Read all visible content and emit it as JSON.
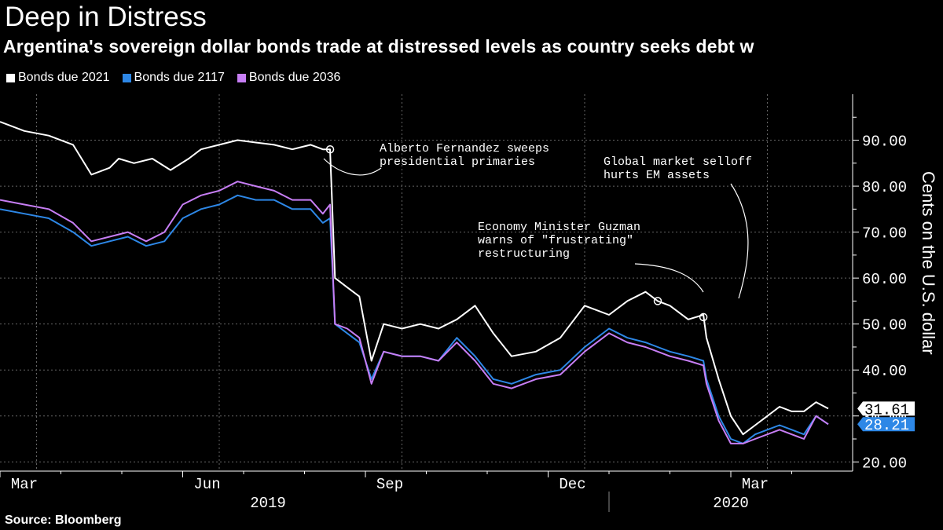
{
  "title": "Deep in Distress",
  "subtitle": "Argentina's sovereign dollar bonds trade at distressed levels as country seeks debt w",
  "source": "Source: Bloomberg",
  "chart_data": {
    "type": "line",
    "ylabel": "Cents on the U.S. dollar",
    "ylim": [
      18,
      100
    ],
    "yticks": [
      "20.00",
      "30.00",
      "40.00",
      "50.00",
      "60.00",
      "70.00",
      "80.00",
      "90.00"
    ],
    "ytick_values": [
      20,
      30,
      40,
      50,
      60,
      70,
      80,
      90
    ],
    "x_labels": [
      "Mar",
      "Jun",
      "Sep",
      "Dec",
      "Mar"
    ],
    "x_label_positions": [
      2.4,
      5.4,
      8.4,
      11.4,
      14.4
    ],
    "year_labels": [
      "2019",
      "2020"
    ],
    "year_label_positions": [
      6.4,
      14.0
    ],
    "x_range": [
      2.0,
      16.0
    ],
    "grid": true,
    "legend_position": "top-left",
    "series": [
      {
        "name": "Bonds due 2021",
        "color": "#ffffff",
        "x": [
          2.0,
          2.4,
          2.8,
          3.2,
          3.5,
          3.8,
          3.95,
          4.2,
          4.5,
          4.8,
          5.1,
          5.3,
          5.6,
          5.9,
          6.2,
          6.5,
          6.8,
          7.1,
          7.3,
          7.42,
          7.5,
          7.7,
          7.9,
          8.1,
          8.3,
          8.6,
          8.9,
          9.2,
          9.5,
          9.8,
          10.1,
          10.4,
          10.8,
          11.2,
          11.6,
          12.0,
          12.3,
          12.6,
          12.8,
          13.0,
          13.3,
          13.55,
          13.6,
          13.8,
          14.0,
          14.2,
          14.4,
          14.6,
          14.8,
          15.0,
          15.2,
          15.4,
          15.6
        ],
        "values": [
          94,
          92,
          91,
          89,
          82.5,
          84,
          86,
          85,
          86,
          83.5,
          86,
          88,
          89,
          90,
          89.5,
          89,
          88,
          89,
          88,
          88,
          60,
          58,
          56,
          42,
          50,
          49,
          50,
          49,
          51,
          54,
          48,
          43,
          44,
          47,
          54,
          52,
          55,
          57,
          55,
          54,
          51,
          52,
          47,
          38,
          30,
          26,
          28,
          30,
          32,
          31,
          31,
          33,
          31.6
        ]
      },
      {
        "name": "Bonds due 2117",
        "color": "#2d87e6",
        "x": [
          2.0,
          2.4,
          2.8,
          3.2,
          3.5,
          3.8,
          4.1,
          4.4,
          4.7,
          5.0,
          5.3,
          5.6,
          5.9,
          6.2,
          6.5,
          6.8,
          7.1,
          7.3,
          7.42,
          7.5,
          7.7,
          7.9,
          8.1,
          8.3,
          8.6,
          8.9,
          9.2,
          9.5,
          9.8,
          10.1,
          10.4,
          10.8,
          11.2,
          11.6,
          12.0,
          12.3,
          12.6,
          12.8,
          13.0,
          13.3,
          13.55,
          13.6,
          13.8,
          14.0,
          14.2,
          14.4,
          14.6,
          14.8,
          15.0,
          15.2,
          15.4,
          15.6
        ],
        "values": [
          75,
          74,
          73,
          70,
          67,
          68,
          69,
          67,
          68,
          73,
          75,
          76,
          78,
          77,
          77,
          75,
          75,
          72,
          73,
          50,
          48,
          46,
          38,
          44,
          43,
          43,
          42,
          47,
          43,
          38,
          37,
          39,
          40,
          45,
          49,
          47,
          46,
          45,
          44,
          43,
          42,
          38,
          30,
          25,
          24,
          26,
          27,
          28,
          27,
          26,
          30,
          28.2
        ]
      },
      {
        "name": "Bonds due 2036",
        "color": "#c77ef5",
        "x": [
          2.0,
          2.4,
          2.8,
          3.2,
          3.5,
          3.8,
          4.1,
          4.4,
          4.7,
          5.0,
          5.3,
          5.6,
          5.9,
          6.2,
          6.5,
          6.8,
          7.1,
          7.3,
          7.42,
          7.5,
          7.7,
          7.9,
          8.1,
          8.3,
          8.6,
          8.9,
          9.2,
          9.5,
          9.8,
          10.1,
          10.4,
          10.8,
          11.2,
          11.6,
          12.0,
          12.3,
          12.6,
          12.8,
          13.0,
          13.3,
          13.55,
          13.6,
          13.8,
          14.0,
          14.2,
          14.4,
          14.6,
          14.8,
          15.0,
          15.2,
          15.4,
          15.6
        ],
        "values": [
          77,
          76,
          75,
          72,
          68,
          69,
          70,
          68,
          70,
          76,
          78,
          79,
          81,
          80,
          79,
          77,
          77,
          74,
          76,
          50,
          49,
          47,
          37,
          44,
          43,
          43,
          42,
          46,
          42,
          37,
          36,
          38,
          39,
          44,
          48,
          46,
          45,
          44,
          43,
          42,
          41,
          37,
          29,
          24,
          24,
          25,
          26,
          27,
          26,
          25,
          30,
          28.2
        ]
      }
    ],
    "end_labels": [
      {
        "text": "31.61",
        "value": 31.61,
        "bg": "#ffffff",
        "fg": "#000000"
      },
      {
        "text": "28.21",
        "value": 28.21,
        "bg": "#2d87e6",
        "fg": "#ffffff"
      }
    ],
    "annotations": [
      {
        "lines": [
          "Alberto Fernandez sweeps",
          "presidential primaries"
        ],
        "point_x": 7.42,
        "point_y": 88
      },
      {
        "lines": [
          "Global market selloff",
          "hurts EM assets"
        ],
        "point_x": 13.55,
        "point_y": 51.5
      },
      {
        "lines": [
          "Economy Minister Guzman",
          "warns of \"frustrating\"",
          "restructuring"
        ],
        "point_x": 12.8,
        "point_y": 55
      }
    ]
  }
}
